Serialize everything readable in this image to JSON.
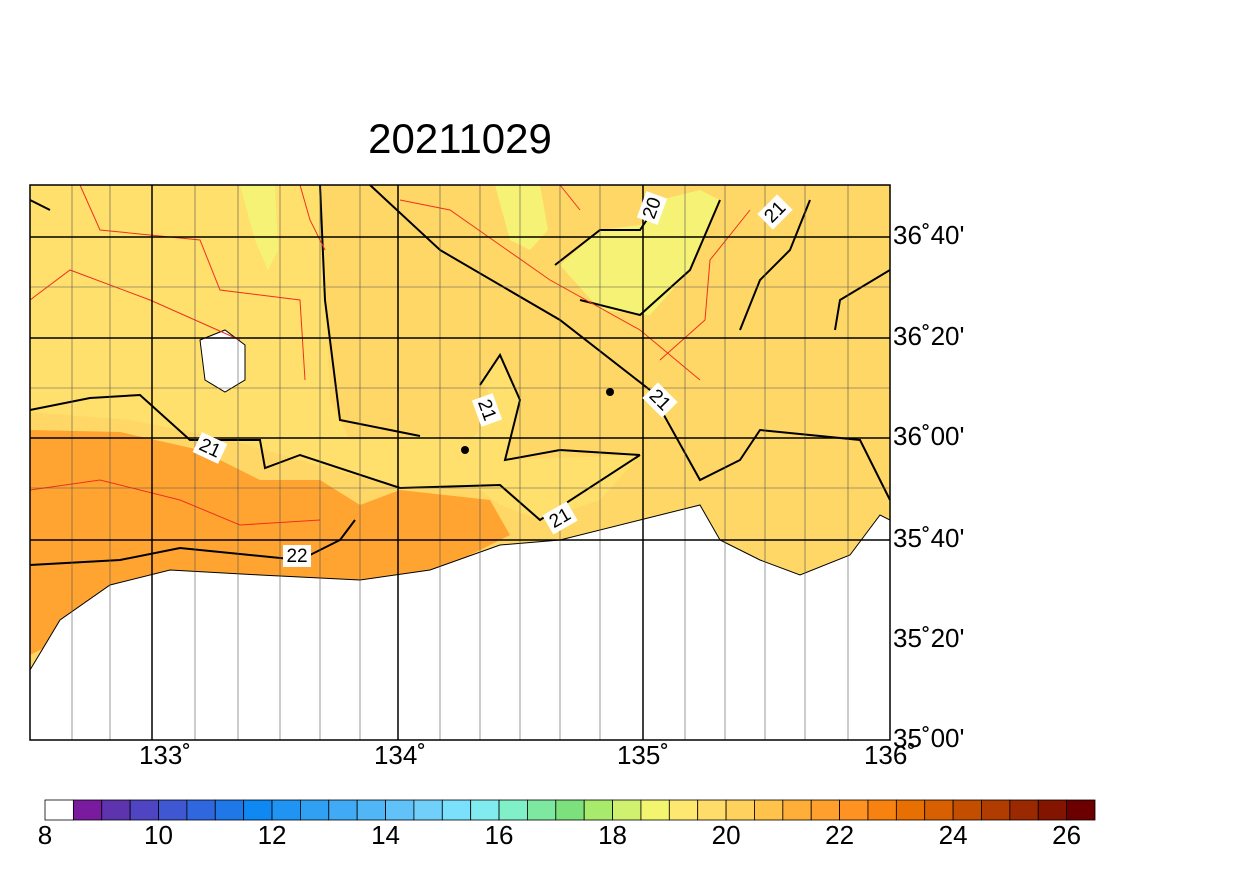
{
  "title": "20211029",
  "lon_labels": [
    "133˚",
    "134˚",
    "135˚",
    "136˚"
  ],
  "lat_labels": [
    "36˚40'",
    "36˚20'",
    "36˚00'",
    "35˚40'",
    "35˚20'",
    "35˚00'"
  ],
  "contour_labels": [
    "20",
    "21",
    "21",
    "21",
    "21",
    "21",
    "22"
  ],
  "colorbar": {
    "ticks": [
      8,
      10,
      12,
      14,
      16,
      18,
      20,
      22,
      24,
      26
    ],
    "colors": [
      "#ffffff",
      "#7a1a9e",
      "#5e34ae",
      "#4f45c2",
      "#3f58d2",
      "#2f68de",
      "#1f78e8",
      "#0e88f2",
      "#1f94f2",
      "#2fa0f2",
      "#40abf4",
      "#50b6f6",
      "#60c2f8",
      "#70d0fa",
      "#7ae0fc",
      "#80ecf0",
      "#7ff0c8",
      "#7de8a0",
      "#7ce07c",
      "#a8ea6c",
      "#d0f070",
      "#f4f56e",
      "#ffe870",
      "#ffdd68",
      "#ffd25e",
      "#ffc24a",
      "#ffae38",
      "#ffa02c",
      "#ff9220",
      "#f88210",
      "#e87000",
      "#d86000",
      "#c44e00",
      "#b03c00",
      "#9a2800",
      "#821400",
      "#6c0000"
    ]
  }
}
